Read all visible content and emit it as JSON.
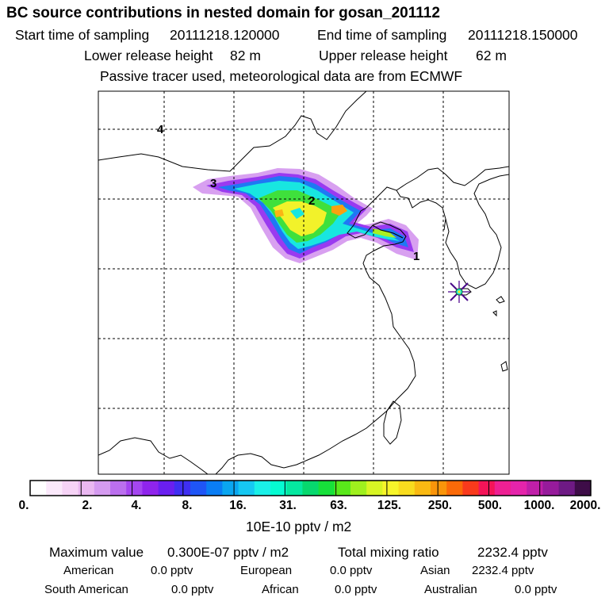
{
  "header": {
    "title": "BC  source contributions in nested domain for gosan_201112",
    "start_label": "Start time of sampling",
    "start_value": "20111218.120000",
    "end_label": "End time of sampling",
    "end_value": "20111218.150000",
    "lower_label": "Lower release height",
    "lower_value": "82 m",
    "upper_label": "Upper release height",
    "upper_value": "62 m",
    "tracer_note": "Passive tracer used, meteorological data are from ECMWF"
  },
  "map": {
    "trajectory_labels": [
      "4",
      "3",
      "2",
      "1"
    ],
    "site_marker": "gosan-station"
  },
  "colorbar": {
    "colors": [
      "#ffffff",
      "#fbe9fb",
      "#f6d3f6",
      "#eab8f1",
      "#d59bf0",
      "#bb6fee",
      "#a546f0",
      "#8f24ec",
      "#6a1ff0",
      "#3f2ff2",
      "#1f55f6",
      "#0a7df4",
      "#0aa6f0",
      "#16c8f2",
      "#1af0e8",
      "#06fbd2",
      "#05e8a0",
      "#07d86e",
      "#17e03a",
      "#59e81a",
      "#9ff01e",
      "#d8f524",
      "#f7f52a",
      "#f8dc1e",
      "#f9b912",
      "#fa950a",
      "#fb6a08",
      "#f93a1c",
      "#f41458",
      "#ee2093",
      "#e524ab",
      "#c01fa9",
      "#961b9b",
      "#6e1a84",
      "#3e0d48"
    ],
    "ticks": [
      "0.",
      "2.",
      "4.",
      "8.",
      "16.",
      "31.",
      "63.",
      "125.",
      "250.",
      "500.",
      "1000.",
      "2000."
    ],
    "unit": "10E-10 pptv / m2"
  },
  "summary": {
    "max_label": "Maximum value",
    "max_value": "0.300E-07 pptv / m2",
    "total_label": "Total mixing ratio",
    "total_value": "2232.4 pptv",
    "regions": [
      {
        "name": "American",
        "value": "0.0 pptv"
      },
      {
        "name": "European",
        "value": "0.0 pptv"
      },
      {
        "name": "Asian",
        "value": "2232.4 pptv"
      },
      {
        "name": "South American",
        "value": "0.0 pptv"
      },
      {
        "name": "African",
        "value": "0.0 pptv"
      },
      {
        "name": "Australian",
        "value": "0.0 pptv"
      }
    ]
  }
}
